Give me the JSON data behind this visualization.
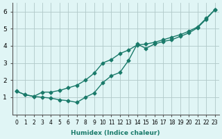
{
  "xlabel": "Humidex (Indice chaleur)",
  "x": [
    0,
    1,
    2,
    3,
    4,
    5,
    6,
    7,
    8,
    9,
    10,
    11,
    12,
    13,
    14,
    15,
    16,
    17,
    18,
    19,
    20,
    21,
    22,
    23
  ],
  "line1": [
    1.35,
    1.15,
    1.05,
    1.0,
    0.95,
    0.85,
    0.8,
    0.7,
    1.0,
    1.25,
    1.85,
    2.25,
    2.45,
    3.15,
    4.1,
    3.85,
    4.1,
    4.25,
    4.35,
    4.55,
    4.75,
    5.05,
    5.55,
    6.1
  ],
  "line2": [
    1.35,
    1.15,
    1.05,
    1.3,
    1.3,
    1.4,
    1.55,
    1.7,
    2.0,
    2.4,
    3.0,
    3.2,
    3.55,
    3.75,
    4.05,
    4.1,
    4.2,
    4.35,
    4.5,
    4.65,
    4.85,
    5.1,
    5.6,
    6.1
  ],
  "line_color": "#1a7a6a",
  "bg_color": "#e0f5f5",
  "grid_color": "#b0c8c8",
  "xlim": [
    -0.5,
    23.5
  ],
  "ylim": [
    0,
    6.5
  ],
  "yticks": [
    1,
    2,
    3,
    4,
    5,
    6
  ],
  "xtick_labels": [
    "0",
    "1",
    "2",
    "3",
    "4",
    "5",
    "6",
    "7",
    "8",
    "9",
    "10",
    "11",
    "12",
    "13",
    "14",
    "15",
    "16",
    "17",
    "18",
    "19",
    "20",
    "21",
    "22",
    "23"
  ]
}
